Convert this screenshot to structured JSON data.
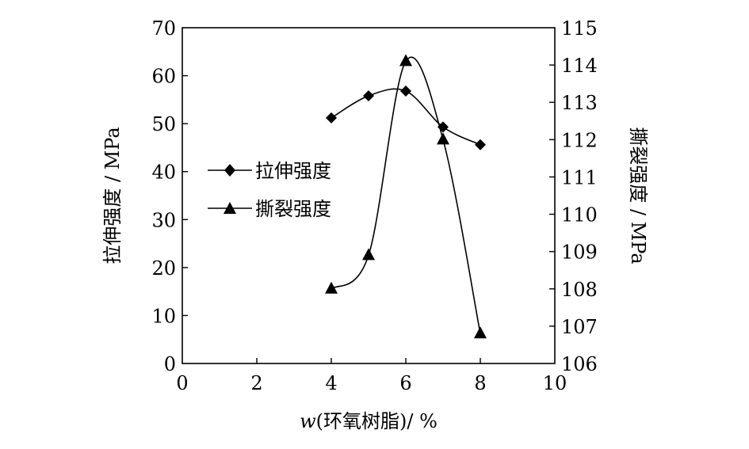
{
  "chart_data": {
    "type": "line",
    "xlabel_prefix": "w",
    "xlabel_rest": "(环氧树脂)/ %",
    "ylabel_left": "拉伸强度 / MPa",
    "ylabel_right": "撕裂强度 / MPa",
    "xlim": [
      0,
      10
    ],
    "ylim_left": [
      0,
      70
    ],
    "ylim_right": [
      106,
      115
    ],
    "xticks": [
      "0",
      "2",
      "4",
      "6",
      "8",
      "10"
    ],
    "yticks_left": [
      "0",
      "10",
      "20",
      "30",
      "40",
      "50",
      "60",
      "70"
    ],
    "yticks_right": [
      "106",
      "107",
      "108",
      "109",
      "110",
      "111",
      "112",
      "113",
      "114",
      "115"
    ],
    "legend_position": "center-left",
    "series": [
      {
        "name": "拉伸强度",
        "marker": "diamond",
        "axis": "left",
        "x": [
          4,
          5,
          6,
          7,
          8
        ],
        "values": [
          51.2,
          55.8,
          56.8,
          49.3,
          45.6
        ]
      },
      {
        "name": "撕裂强度",
        "marker": "triangle",
        "axis": "right",
        "x": [
          4,
          5,
          6,
          7,
          8
        ],
        "values": [
          108.0,
          108.9,
          114.1,
          112.0,
          106.8
        ]
      }
    ]
  }
}
